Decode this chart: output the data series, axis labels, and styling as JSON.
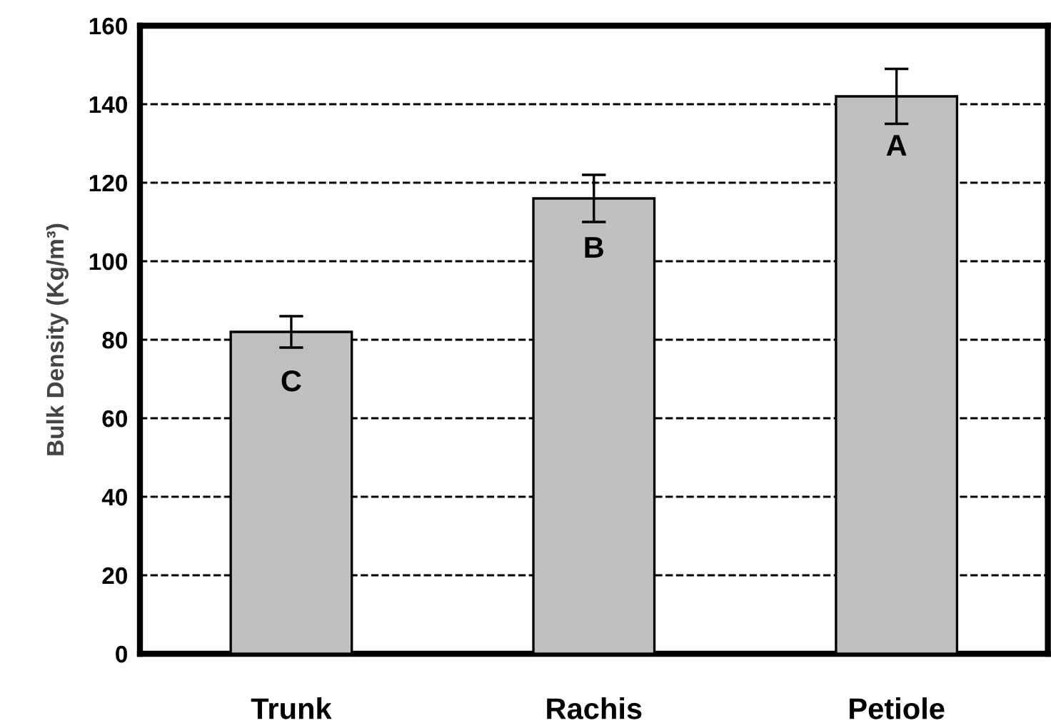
{
  "chart_data": {
    "type": "bar",
    "ylabel": "Bulk Density (Kg/m³)",
    "categories": [
      "Trunk",
      "Rachis",
      "Petiole"
    ],
    "values": [
      82,
      116,
      142
    ],
    "errors": [
      4,
      6,
      7
    ],
    "color": "#c0c0c0",
    "ylim": [
      0,
      160
    ],
    "yticks": [
      0,
      20,
      40,
      60,
      80,
      100,
      120,
      140,
      160
    ],
    "grid": "y",
    "line_style": "dashed",
    "annotations": [
      {
        "text": "C",
        "x": "Trunk",
        "y": 82
      },
      {
        "text": "B",
        "x": "Rachis",
        "y": 116
      },
      {
        "text": "A",
        "x": "Petiole",
        "y": 142
      }
    ]
  }
}
